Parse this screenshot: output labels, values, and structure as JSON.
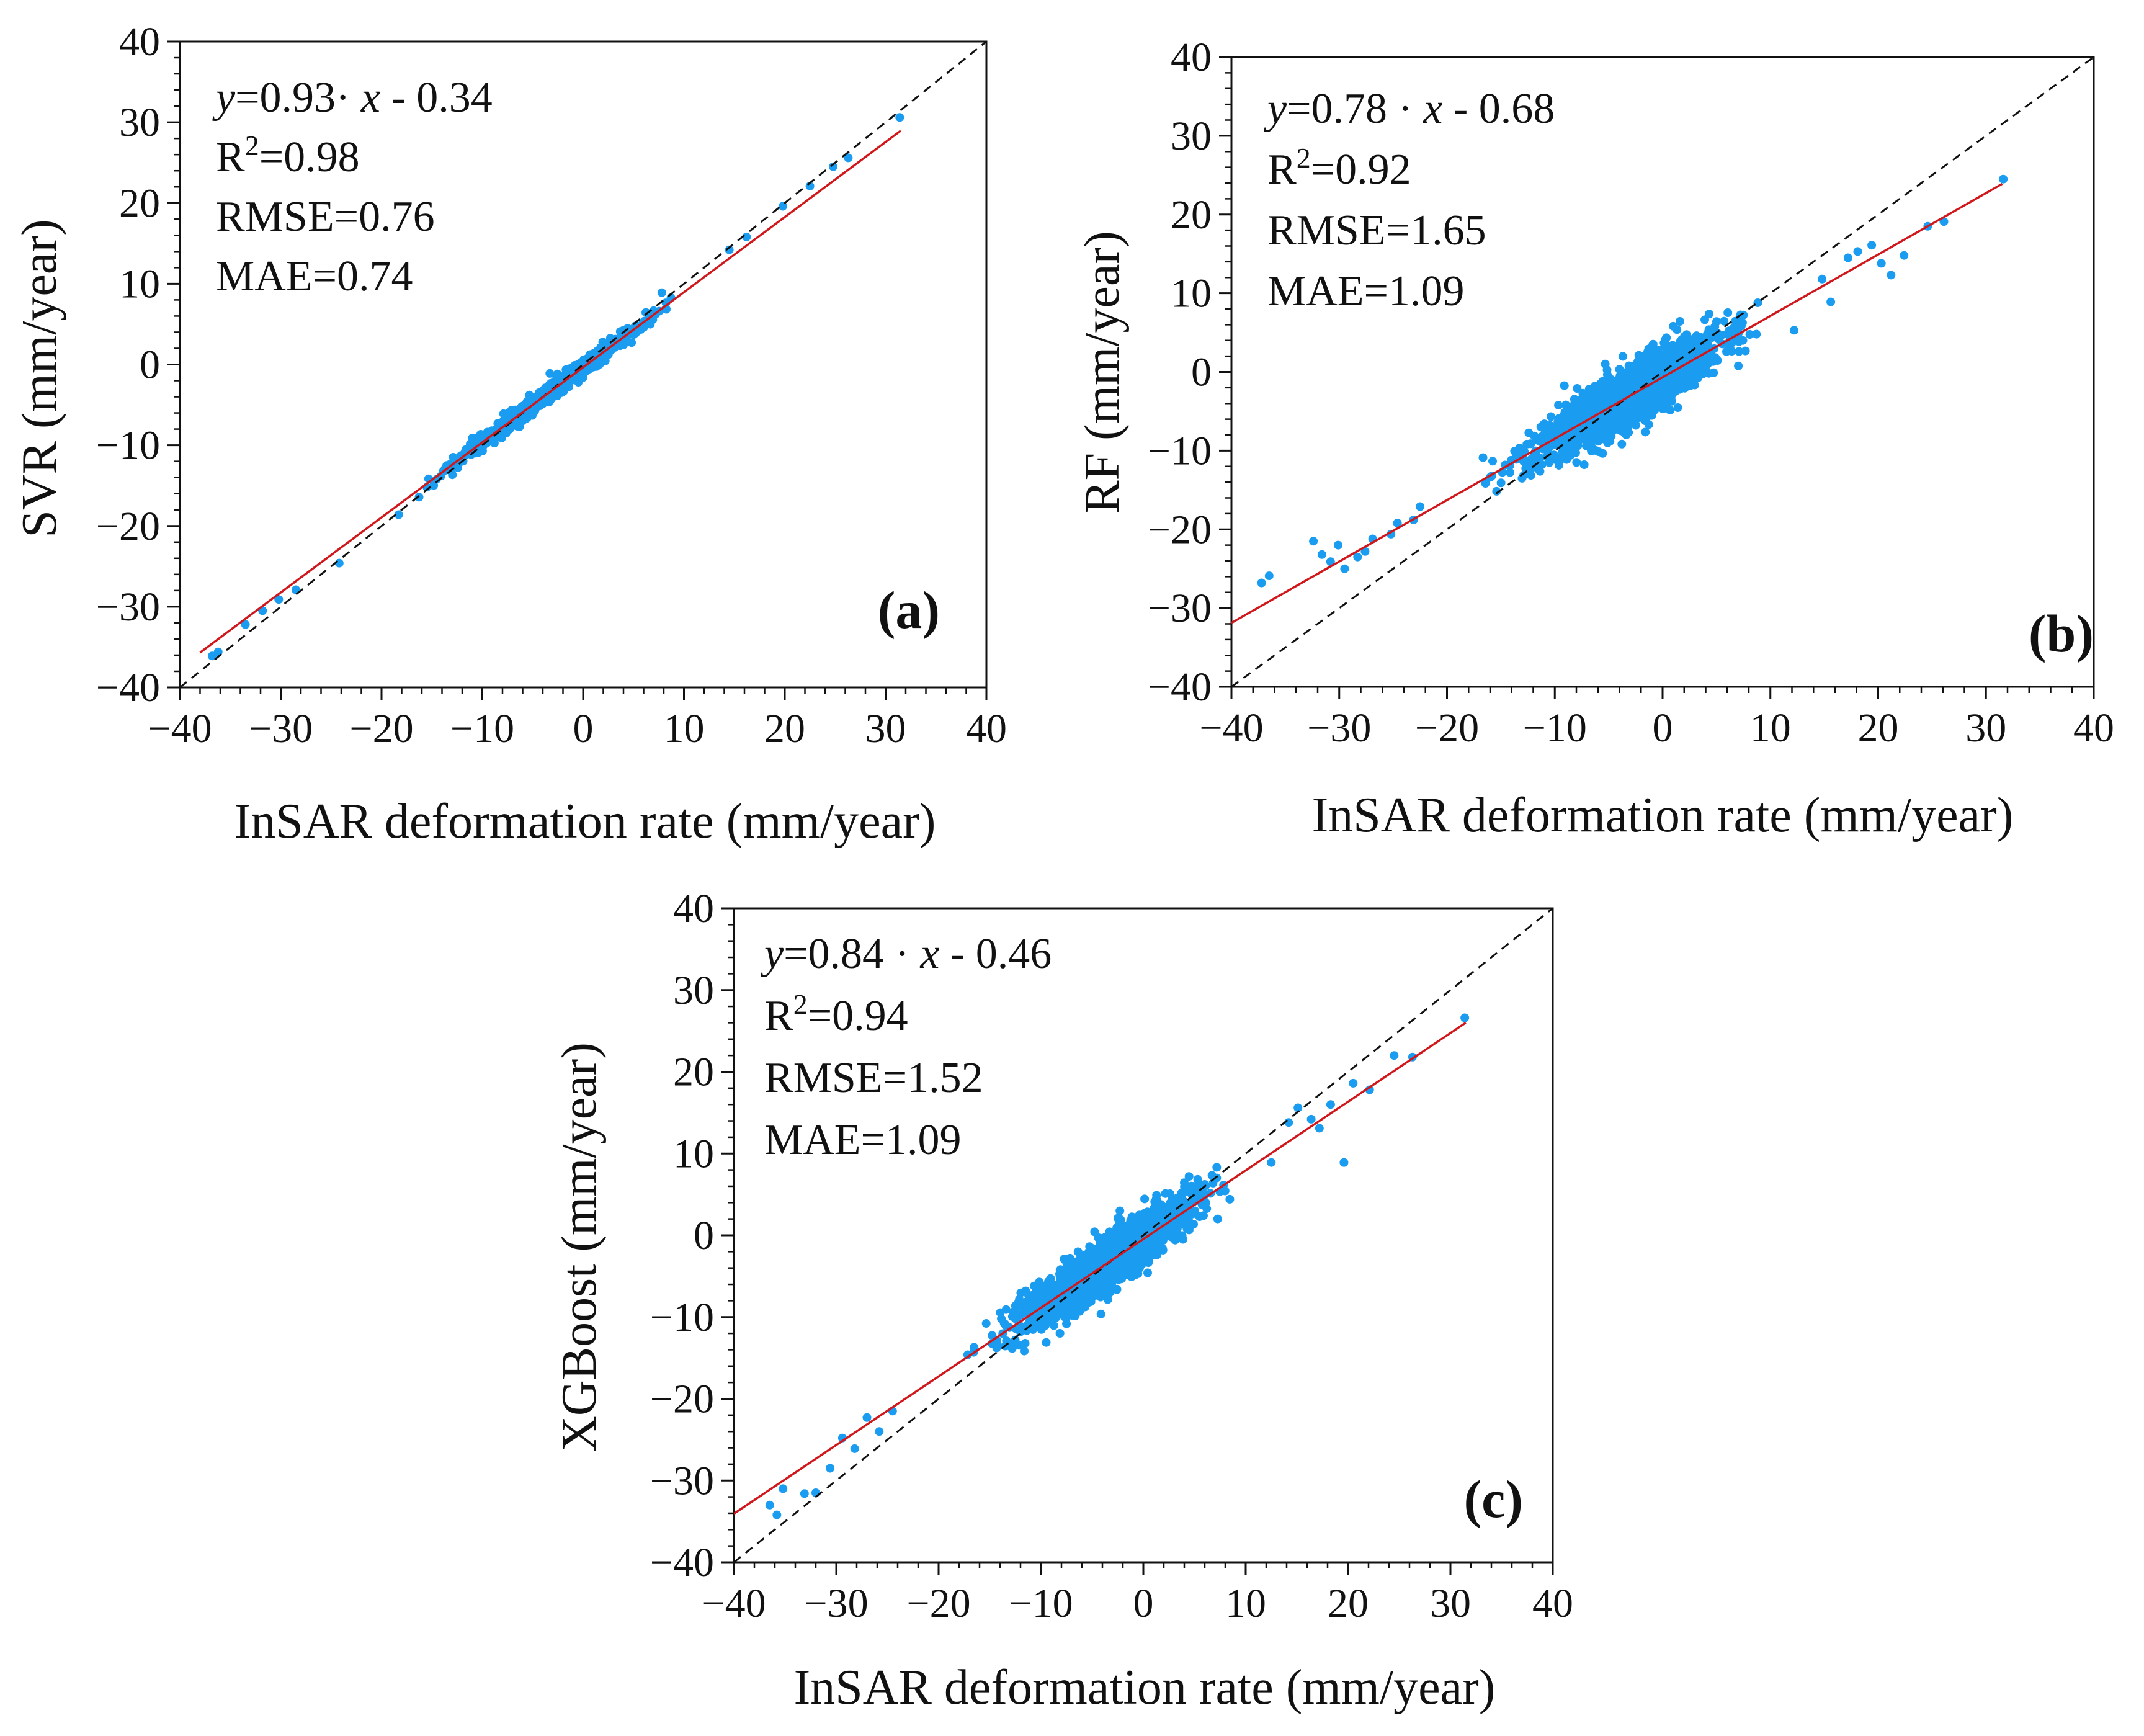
{
  "colors": {
    "points": "#1a9cf0",
    "fit_line": "#d0181c",
    "identity_line": "#111111",
    "axis": "#111111"
  },
  "chart_data": [
    {
      "type": "scatter",
      "panel_label": "(a)",
      "xlabel": "InSAR deformation rate (mm/year)",
      "ylabel": "SVR (mm/year)",
      "xlim": [
        -40,
        40
      ],
      "ylim": [
        -40,
        40
      ],
      "xticks": [
        "−40",
        "−30",
        "−20",
        "−10",
        "0",
        "10",
        "20",
        "30",
        "40"
      ],
      "yticks": [
        "−40",
        "−30",
        "−20",
        "−10",
        "0",
        "10",
        "20",
        "30",
        "40"
      ],
      "tick_values": [
        -40,
        -30,
        -20,
        -10,
        0,
        10,
        20,
        30,
        40
      ],
      "fit": {
        "slope": 0.93,
        "intercept": -0.34,
        "x_range": [
          -38,
          31.5
        ]
      },
      "identity_line": true,
      "stats": {
        "equation_y": "y",
        "equation_rest": "=0.93· ",
        "equation_x": "x",
        "equation_tail": " - 0.34",
        "r2_prefix": "R",
        "r2_exp": "2",
        "r2_value": "=0.98",
        "rmse": "RMSE=0.76",
        "mae": "MAE=0.74"
      },
      "spread": 0.5,
      "n_points": 1100,
      "seed": 11,
      "extremes": [
        [
          -36.8,
          -36.1
        ],
        [
          -36.2,
          -35.6
        ],
        [
          -33.5,
          -32.2
        ],
        [
          -31.8,
          -30.5
        ],
        [
          -30.2,
          -29.1
        ],
        [
          -28.5,
          -27.9
        ],
        [
          -24.2,
          -24.6
        ],
        [
          -18.3,
          -18.6
        ],
        [
          -15.5,
          -15.2
        ],
        [
          7.8,
          8.9
        ],
        [
          14.5,
          14.2
        ],
        [
          16.2,
          15.8
        ],
        [
          19.8,
          19.6
        ],
        [
          22.5,
          22.1
        ],
        [
          24.8,
          24.5
        ],
        [
          26.3,
          25.6
        ],
        [
          31.4,
          30.6
        ]
      ]
    },
    {
      "type": "scatter",
      "panel_label": "(b)",
      "xlabel": "InSAR deformation rate (mm/year)",
      "ylabel": "RF (mm/year)",
      "xlim": [
        -40,
        40
      ],
      "ylim": [
        -40,
        40
      ],
      "xticks": [
        "−40",
        "−30",
        "−20",
        "−10",
        "0",
        "10",
        "20",
        "30",
        "40"
      ],
      "yticks": [
        "−40",
        "−30",
        "−20",
        "−10",
        "0",
        "10",
        "20",
        "30",
        "40"
      ],
      "tick_values": [
        -40,
        -30,
        -20,
        -10,
        0,
        10,
        20,
        30,
        40
      ],
      "fit": {
        "slope": 0.78,
        "intercept": -0.68,
        "x_range": [
          -40,
          31.5
        ]
      },
      "identity_line": true,
      "stats": {
        "equation_y": "y",
        "equation_rest": "=0.78 · ",
        "equation_x": "x",
        "equation_tail": " - 0.68",
        "r2_prefix": "R",
        "r2_exp": "2",
        "r2_value": "=0.92",
        "rmse": "RMSE=1.65",
        "mae": "MAE=1.09"
      },
      "spread": 1.8,
      "n_points": 1600,
      "seed": 23,
      "extremes": [
        [
          -37.2,
          -26.8
        ],
        [
          -36.5,
          -25.9
        ],
        [
          -32.4,
          -21.5
        ],
        [
          -31.6,
          -23.2
        ],
        [
          -30.8,
          -24.1
        ],
        [
          -30.1,
          -22.0
        ],
        [
          -29.5,
          -25.0
        ],
        [
          -28.3,
          -23.5
        ],
        [
          -27.6,
          -22.8
        ],
        [
          -26.9,
          -21.2
        ],
        [
          -25.2,
          -20.6
        ],
        [
          -24.6,
          -19.2
        ],
        [
          -23.1,
          -18.8
        ],
        [
          -22.5,
          -17.1
        ],
        [
          12.2,
          5.3
        ],
        [
          14.8,
          11.8
        ],
        [
          15.6,
          8.9
        ],
        [
          17.2,
          14.5
        ],
        [
          18.1,
          15.3
        ],
        [
          19.4,
          16.1
        ],
        [
          20.3,
          13.8
        ],
        [
          21.2,
          12.3
        ],
        [
          22.4,
          14.8
        ],
        [
          24.6,
          18.5
        ],
        [
          26.1,
          19.1
        ],
        [
          31.6,
          24.5
        ]
      ]
    },
    {
      "type": "scatter",
      "panel_label": "(c)",
      "xlabel": "InSAR deformation rate (mm/year)",
      "ylabel": "XGBoost (mm/year)",
      "xlim": [
        -40,
        40
      ],
      "ylim": [
        -40,
        40
      ],
      "xticks": [
        "−40",
        "−30",
        "−20",
        "−10",
        "0",
        "10",
        "20",
        "30",
        "40"
      ],
      "yticks": [
        "−40",
        "−30",
        "−20",
        "−10",
        "0",
        "10",
        "20",
        "30",
        "40"
      ],
      "tick_values": [
        -40,
        -30,
        -20,
        -10,
        0,
        10,
        20,
        30,
        40
      ],
      "fit": {
        "slope": 0.84,
        "intercept": -0.46,
        "x_range": [
          -40,
          31.5
        ]
      },
      "identity_line": true,
      "stats": {
        "equation_y": "y",
        "equation_rest": "=0.84 · ",
        "equation_x": "x",
        "equation_tail": " - 0.46",
        "r2_prefix": "R",
        "r2_exp": "2",
        "r2_value": "=0.94",
        "rmse": "RMSE=1.52",
        "mae": "MAE=1.09"
      },
      "spread": 1.6,
      "n_points": 1600,
      "seed": 37,
      "extremes": [
        [
          -36.5,
          -33.0
        ],
        [
          -35.8,
          -34.2
        ],
        [
          -35.2,
          -31.0
        ],
        [
          -33.1,
          -31.6
        ],
        [
          -32.0,
          -31.5
        ],
        [
          -30.6,
          -28.5
        ],
        [
          -29.4,
          -24.8
        ],
        [
          -28.2,
          -26.1
        ],
        [
          -27.0,
          -22.3
        ],
        [
          -25.8,
          -24.0
        ],
        [
          -24.5,
          -21.5
        ],
        [
          12.5,
          8.9
        ],
        [
          14.2,
          13.8
        ],
        [
          15.1,
          15.6
        ],
        [
          16.4,
          14.2
        ],
        [
          17.2,
          13.1
        ],
        [
          18.3,
          16.0
        ],
        [
          19.6,
          8.9
        ],
        [
          20.5,
          18.6
        ],
        [
          22.1,
          17.8
        ],
        [
          24.5,
          22.0
        ],
        [
          26.3,
          21.8
        ],
        [
          31.4,
          26.6
        ]
      ]
    }
  ]
}
